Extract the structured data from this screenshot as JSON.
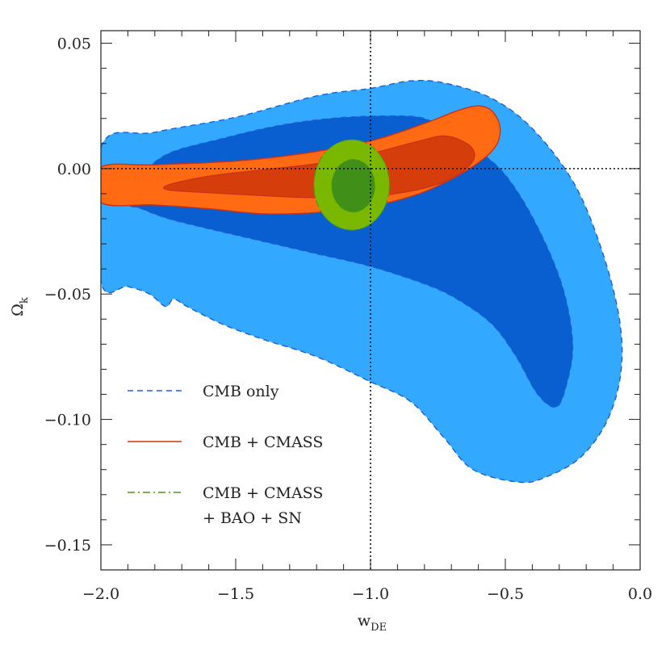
{
  "chart_data": {
    "type": "contour",
    "xlabel": "w",
    "xlabel_sub": "DE",
    "ylabel": "Ω",
    "ylabel_sub": "k",
    "xlim": [
      -2.0,
      0.0
    ],
    "ylim": [
      -0.16,
      0.055
    ],
    "x_ticks": [
      {
        "value": -2.0,
        "label": "−2.0"
      },
      {
        "value": -1.5,
        "label": "−1.5"
      },
      {
        "value": -1.0,
        "label": "−1.0"
      },
      {
        "value": -0.5,
        "label": "−0.5"
      },
      {
        "value": 0.0,
        "label": "0.0"
      }
    ],
    "y_ticks": [
      {
        "value": 0.05,
        "label": "0.05"
      },
      {
        "value": 0.0,
        "label": "0.00"
      },
      {
        "value": -0.05,
        "label": "−0.05"
      },
      {
        "value": -0.1,
        "label": "−0.10"
      },
      {
        "value": -0.15,
        "label": "−0.15"
      }
    ],
    "reference_lines": [
      {
        "axis": "x",
        "value": -1.0,
        "style": "dotted"
      },
      {
        "axis": "y",
        "value": 0.0,
        "style": "dotted"
      }
    ],
    "series": [
      {
        "name": "CMB only",
        "line_style": "dashed",
        "line_color": "#1f5fd6",
        "fill_95": "#33a8ff",
        "fill_68": "#0a5fd0",
        "contour_95": [
          [
            -2.0,
            0.0085
          ],
          [
            -1.8,
            0.0145
          ],
          [
            -1.5,
            0.0205
          ],
          [
            -1.2,
            0.029
          ],
          [
            -1.0,
            0.032
          ],
          [
            -0.85,
            0.035
          ],
          [
            -0.72,
            0.034
          ],
          [
            -0.55,
            0.028
          ],
          [
            -0.4,
            0.016
          ],
          [
            -0.25,
            -0.005
          ],
          [
            -0.15,
            -0.03
          ],
          [
            -0.08,
            -0.058
          ],
          [
            -0.07,
            -0.08
          ],
          [
            -0.12,
            -0.1
          ],
          [
            -0.22,
            -0.115
          ],
          [
            -0.35,
            -0.123
          ],
          [
            -0.45,
            -0.125
          ],
          [
            -0.62,
            -0.12
          ],
          [
            -0.73,
            -0.107
          ],
          [
            -0.85,
            -0.093
          ],
          [
            -1.0,
            -0.085
          ],
          [
            -1.2,
            -0.075
          ],
          [
            -1.4,
            -0.068
          ],
          [
            -1.55,
            -0.062
          ],
          [
            -1.68,
            -0.055
          ],
          [
            -1.73,
            -0.052
          ],
          [
            -1.76,
            -0.055
          ],
          [
            -1.82,
            -0.05
          ],
          [
            -1.9,
            -0.047
          ],
          [
            -2.0,
            -0.045
          ]
        ],
        "contour_68": [
          [
            -1.9,
            -0.0135
          ],
          [
            -1.85,
            -0.003
          ],
          [
            -1.75,
            0.006
          ],
          [
            -1.55,
            0.012
          ],
          [
            -1.35,
            0.017
          ],
          [
            -1.15,
            0.02
          ],
          [
            -0.95,
            0.021
          ],
          [
            -0.8,
            0.02
          ],
          [
            -0.7,
            0.013
          ],
          [
            -0.55,
            0.003
          ],
          [
            -0.45,
            -0.01
          ],
          [
            -0.35,
            -0.03
          ],
          [
            -0.28,
            -0.05
          ],
          [
            -0.25,
            -0.07
          ],
          [
            -0.27,
            -0.085
          ],
          [
            -0.31,
            -0.095
          ],
          [
            -0.38,
            -0.09
          ],
          [
            -0.46,
            -0.075
          ],
          [
            -0.55,
            -0.062
          ],
          [
            -0.68,
            -0.052
          ],
          [
            -0.8,
            -0.046
          ],
          [
            -1.0,
            -0.039
          ],
          [
            -1.2,
            -0.034
          ],
          [
            -1.4,
            -0.029
          ],
          [
            -1.6,
            -0.024
          ],
          [
            -1.75,
            -0.02
          ],
          [
            -1.85,
            -0.016
          ]
        ]
      },
      {
        "name": "CMB + CMASS",
        "line_style": "solid",
        "line_color": "#c8321a",
        "fill_95": "#ff6a12",
        "fill_68": "#d53d0b",
        "contour_95": [
          [
            -2.0,
            0.0005
          ],
          [
            -1.8,
            0.0015
          ],
          [
            -1.5,
            0.003
          ],
          [
            -1.25,
            0.006
          ],
          [
            -1.0,
            0.011
          ],
          [
            -0.8,
            0.018
          ],
          [
            -0.68,
            0.023
          ],
          [
            -0.6,
            0.025
          ],
          [
            -0.55,
            0.023
          ],
          [
            -0.52,
            0.017
          ],
          [
            -0.53,
            0.01
          ],
          [
            -0.58,
            0.004
          ],
          [
            -0.68,
            -0.003
          ],
          [
            -0.82,
            -0.01
          ],
          [
            -1.0,
            -0.015
          ],
          [
            -1.2,
            -0.0175
          ],
          [
            -1.4,
            -0.018
          ],
          [
            -1.6,
            -0.016
          ],
          [
            -1.8,
            -0.0145
          ],
          [
            -2.0,
            -0.0135
          ]
        ],
        "contour_68": [
          [
            -1.75,
            -0.0065
          ],
          [
            -1.6,
            -0.003
          ],
          [
            -1.4,
            -0.0005
          ],
          [
            -1.2,
            0.002
          ],
          [
            -1.0,
            0.006
          ],
          [
            -0.82,
            0.011
          ],
          [
            -0.72,
            0.013
          ],
          [
            -0.63,
            0.009
          ],
          [
            -0.62,
            0.003
          ],
          [
            -0.7,
            -0.004
          ],
          [
            -0.85,
            -0.009
          ],
          [
            -1.05,
            -0.0115
          ],
          [
            -1.25,
            -0.0115
          ],
          [
            -1.45,
            -0.0105
          ],
          [
            -1.62,
            -0.0095
          ],
          [
            -1.75,
            -0.0085
          ]
        ]
      },
      {
        "name": "CMB + CMASS\n+ BAO + SN",
        "line_style": "dash-dot",
        "line_color": "#4a9a1a",
        "fill_95": "#7ab800",
        "fill_68": "#3f8f18",
        "center": [
          -1.07,
          -0.0065
        ],
        "radius_95": [
          0.14,
          0.018
        ],
        "radius_68": [
          0.08,
          0.0105
        ]
      }
    ],
    "legend": {
      "position": "bottom-left",
      "entries": [
        {
          "label": "CMB only",
          "line_style": "dashed",
          "color": "#1f5fd6"
        },
        {
          "label": "CMB + CMASS",
          "line_style": "solid",
          "color": "#c8321a"
        },
        {
          "label_lines": [
            "CMB + CMASS",
            "+ BAO + SN"
          ],
          "line_style": "dash-dot",
          "color": "#4a9a1a"
        }
      ]
    }
  }
}
